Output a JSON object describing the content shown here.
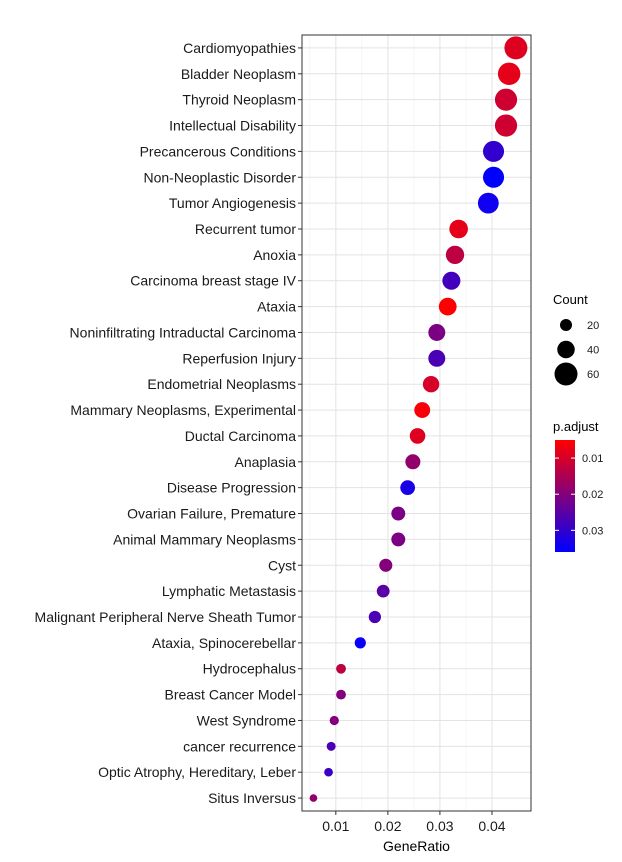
{
  "chart_data": {
    "type": "scatter",
    "xlabel": "GeneRatio",
    "ylabel": "",
    "x_ticks": [
      0.01,
      0.02,
      0.03,
      0.04
    ],
    "x_tick_labels": [
      "0.01",
      "0.02",
      "0.03",
      "0.04"
    ],
    "xlim": [
      0.0035,
      0.0475
    ],
    "grid": true,
    "legend_placement": "right",
    "size_legend": {
      "title": "Count",
      "values": [
        20,
        40,
        60
      ],
      "labels": [
        "20",
        "40",
        "60"
      ]
    },
    "color_legend": {
      "title": "p.adjust",
      "range": [
        0.005,
        0.036
      ],
      "ticks": [
        0.01,
        0.02,
        0.03
      ],
      "tick_labels": [
        "0.01",
        "0.02",
        "0.03"
      ],
      "low_color": "#ff0000",
      "high_color": "#0000ff"
    },
    "points": [
      {
        "term": "Cardiomyopathies",
        "gene_ratio": 0.0446,
        "count": 64,
        "p_adjust": 0.009
      },
      {
        "term": "Bladder Neoplasm",
        "gene_ratio": 0.0433,
        "count": 62,
        "p_adjust": 0.008
      },
      {
        "term": "Thyroid Neoplasm",
        "gene_ratio": 0.0427,
        "count": 61,
        "p_adjust": 0.011
      },
      {
        "term": "Intellectual Disability",
        "gene_ratio": 0.0427,
        "count": 61,
        "p_adjust": 0.011
      },
      {
        "term": "Precancerous Conditions",
        "gene_ratio": 0.0403,
        "count": 57,
        "p_adjust": 0.03
      },
      {
        "term": "Non-Neoplastic Disorder",
        "gene_ratio": 0.0403,
        "count": 57,
        "p_adjust": 0.036
      },
      {
        "term": "Tumor Angiogenesis",
        "gene_ratio": 0.0393,
        "count": 56,
        "p_adjust": 0.034
      },
      {
        "term": "Recurrent tumor",
        "gene_ratio": 0.0336,
        "count": 48,
        "p_adjust": 0.008
      },
      {
        "term": "Anoxia",
        "gene_ratio": 0.0329,
        "count": 47,
        "p_adjust": 0.013
      },
      {
        "term": "Carcinoma breast stage IV",
        "gene_ratio": 0.0322,
        "count": 46,
        "p_adjust": 0.028
      },
      {
        "term": "Ataxia",
        "gene_ratio": 0.0315,
        "count": 45,
        "p_adjust": 0.005
      },
      {
        "term": "Noninfiltrating Intraductal Carcinoma",
        "gene_ratio": 0.0294,
        "count": 42,
        "p_adjust": 0.021
      },
      {
        "term": "Reperfusion Injury",
        "gene_ratio": 0.0294,
        "count": 42,
        "p_adjust": 0.027
      },
      {
        "term": "Endometrial Neoplasms",
        "gene_ratio": 0.0283,
        "count": 40,
        "p_adjust": 0.01
      },
      {
        "term": "Mammary Neoplasms, Experimental",
        "gene_ratio": 0.0266,
        "count": 38,
        "p_adjust": 0.006
      },
      {
        "term": "Ductal Carcinoma",
        "gene_ratio": 0.0257,
        "count": 37,
        "p_adjust": 0.009
      },
      {
        "term": "Anaplasia",
        "gene_ratio": 0.0248,
        "count": 35,
        "p_adjust": 0.018
      },
      {
        "term": "Disease Progression",
        "gene_ratio": 0.0238,
        "count": 34,
        "p_adjust": 0.033
      },
      {
        "term": "Ovarian Failure, Premature",
        "gene_ratio": 0.022,
        "count": 31,
        "p_adjust": 0.021
      },
      {
        "term": "Animal Mammary Neoplasms",
        "gene_ratio": 0.022,
        "count": 31,
        "p_adjust": 0.021
      },
      {
        "term": "Cyst",
        "gene_ratio": 0.0196,
        "count": 28,
        "p_adjust": 0.02
      },
      {
        "term": "Lymphatic Metastasis",
        "gene_ratio": 0.0191,
        "count": 27,
        "p_adjust": 0.025
      },
      {
        "term": "Malignant Peripheral Nerve Sheath Tumor",
        "gene_ratio": 0.0175,
        "count": 25,
        "p_adjust": 0.027
      },
      {
        "term": "Ataxia, Spinocerebellar",
        "gene_ratio": 0.0147,
        "count": 21,
        "p_adjust": 0.035
      },
      {
        "term": "Hydrocephalus",
        "gene_ratio": 0.011,
        "count": 16,
        "p_adjust": 0.013
      },
      {
        "term": "Breast Cancer Model",
        "gene_ratio": 0.011,
        "count": 16,
        "p_adjust": 0.02
      },
      {
        "term": "West Syndrome",
        "gene_ratio": 0.0097,
        "count": 14,
        "p_adjust": 0.02
      },
      {
        "term": "cancer recurrence",
        "gene_ratio": 0.0091,
        "count": 13,
        "p_adjust": 0.027
      },
      {
        "term": "Optic Atrophy, Hereditary, Leber",
        "gene_ratio": 0.0086,
        "count": 12,
        "p_adjust": 0.029
      },
      {
        "term": "Situs Inversus",
        "gene_ratio": 0.0057,
        "count": 8,
        "p_adjust": 0.018
      }
    ]
  }
}
